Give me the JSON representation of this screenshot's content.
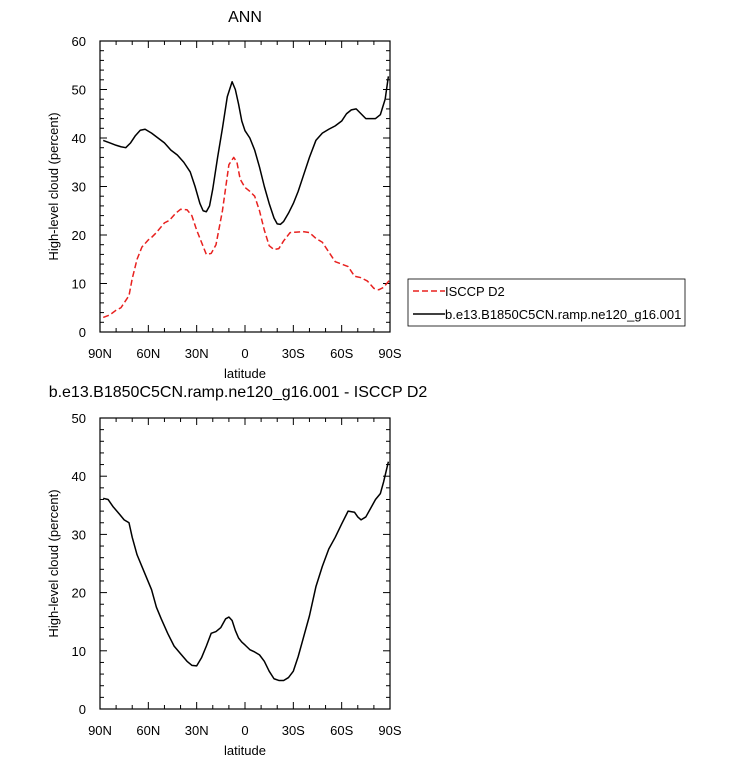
{
  "chart_data": [
    {
      "type": "line",
      "title": "ANN",
      "xlabel": "latitude",
      "ylabel": "High-level cloud (percent)",
      "xlim": [
        -90,
        90
      ],
      "ylim": [
        0,
        60
      ],
      "xticks": [
        -90,
        -60,
        -30,
        0,
        30,
        60,
        90
      ],
      "xtick_labels": [
        "90N",
        "60N",
        "30N",
        "0",
        "30S",
        "60S",
        "90S"
      ],
      "yticks": [
        0,
        10,
        20,
        30,
        40,
        50,
        60
      ],
      "ytick_labels": [
        "0",
        "10",
        "20",
        "30",
        "40",
        "50",
        "60"
      ],
      "legend": {
        "placement": "right-outside",
        "entries": [
          "ISCCP D2",
          "b.e13.B1850C5CN.ramp.ne120_g16.001"
        ]
      },
      "series": [
        {
          "name": "ISCCP D2",
          "color": "#e8211f",
          "dash": "dashed",
          "x": [
            -88,
            -84,
            -80,
            -77,
            -75,
            -72,
            -70,
            -67,
            -64,
            -60,
            -58,
            -55,
            -50,
            -47,
            -43,
            -40,
            -36,
            -33,
            -30,
            -27,
            -24,
            -21,
            -18,
            -14,
            -10,
            -7,
            -5,
            -3,
            0,
            3,
            6,
            9,
            12,
            15,
            18,
            21,
            24,
            28,
            32,
            36,
            40,
            44,
            48,
            52,
            56,
            60,
            64,
            68,
            72,
            76,
            80,
            83,
            86,
            90
          ],
          "y": [
            3,
            3.5,
            4.5,
            5,
            6,
            7.5,
            11,
            15,
            17.5,
            19,
            19.5,
            20.5,
            22.5,
            23,
            24.5,
            25.3,
            25.2,
            24,
            21,
            18.5,
            16,
            16.2,
            18,
            25,
            34.5,
            36,
            35,
            31.5,
            29.8,
            29,
            28,
            25,
            21,
            17.8,
            17,
            17.2,
            18.8,
            20.5,
            20.6,
            20.7,
            20.5,
            19.3,
            18.5,
            16.5,
            14.5,
            14,
            13.5,
            11.5,
            11.2,
            10.5,
            9,
            8.7,
            9.2,
            10.8
          ]
        },
        {
          "name": "b.e13.B1850C5CN.ramp.ne120_g16.001",
          "color": "#000000",
          "dash": "solid",
          "x": [
            -88,
            -84,
            -80,
            -77,
            -74,
            -71,
            -68,
            -65,
            -62,
            -58,
            -54,
            -50,
            -46,
            -42,
            -38,
            -34,
            -31,
            -28,
            -26,
            -24,
            -22,
            -20,
            -17,
            -14,
            -11,
            -8,
            -6,
            -4,
            -2,
            0,
            3,
            6,
            9,
            12,
            15,
            18,
            20,
            22,
            24,
            27,
            30,
            33,
            36,
            40,
            44,
            48,
            52,
            56,
            60,
            63,
            66,
            69,
            72,
            75,
            78,
            81,
            84,
            87,
            89
          ],
          "y": [
            39.5,
            39,
            38.5,
            38.2,
            38,
            39,
            40.5,
            41.6,
            41.8,
            41,
            40,
            39,
            37.5,
            36.5,
            35,
            33,
            30,
            26.5,
            25,
            24.8,
            26,
            29.5,
            36,
            42,
            48.5,
            51.6,
            50,
            47,
            43.5,
            41.5,
            40,
            37.5,
            34,
            30,
            26.5,
            23.5,
            22.3,
            22.2,
            22.8,
            24.5,
            26.5,
            29,
            32,
            36,
            39.5,
            41,
            41.8,
            42.5,
            43.5,
            45,
            45.8,
            46,
            45,
            44,
            44,
            44,
            44.8,
            48,
            52.7
          ]
        }
      ]
    },
    {
      "type": "line",
      "title": "b.e13.B1850C5CN.ramp.ne120_g16.001 - ISCCP D2",
      "xlabel": "latitude",
      "ylabel": "High-level cloud (percent)",
      "xlim": [
        -90,
        90
      ],
      "ylim": [
        0,
        50
      ],
      "xticks": [
        -90,
        -60,
        -30,
        0,
        30,
        60,
        90
      ],
      "xtick_labels": [
        "90N",
        "60N",
        "30N",
        "0",
        "30S",
        "60S",
        "90S"
      ],
      "yticks": [
        0,
        10,
        20,
        30,
        40,
        50
      ],
      "ytick_labels": [
        "0",
        "10",
        "20",
        "30",
        "40",
        "50"
      ],
      "series": [
        {
          "name": "b.e13.B1850C5CN.ramp.ne120_g16.001 - ISCCP D2",
          "color": "#000000",
          "dash": "solid",
          "x": [
            -88,
            -85,
            -82,
            -78,
            -75,
            -72,
            -70,
            -67,
            -64,
            -61,
            -58,
            -55,
            -52,
            -48,
            -44,
            -40,
            -36,
            -33,
            -30,
            -27,
            -24,
            -21,
            -18,
            -15,
            -12,
            -10,
            -8,
            -6,
            -4,
            -2,
            0,
            3,
            6,
            9,
            12,
            15,
            18,
            21,
            24,
            27,
            30,
            33,
            36,
            40,
            44,
            48,
            52,
            56,
            60,
            64,
            68,
            70,
            72,
            75,
            78,
            81,
            84,
            86,
            89
          ],
          "y": [
            36.2,
            36,
            34.8,
            33.5,
            32.5,
            32,
            29.5,
            26.5,
            24.5,
            22.5,
            20.5,
            17.5,
            15.5,
            13,
            10.8,
            9.5,
            8.2,
            7.5,
            7.4,
            8.8,
            10.8,
            13,
            13.3,
            14,
            15.5,
            15.8,
            15.2,
            13.5,
            12.2,
            11.5,
            11,
            10.2,
            9.8,
            9.3,
            8.2,
            6.5,
            5.2,
            4.9,
            4.9,
            5.4,
            6.5,
            9,
            12,
            16,
            21,
            24.5,
            27.5,
            29.5,
            31.8,
            34,
            33.8,
            33,
            32.5,
            33,
            34.5,
            36,
            37,
            39,
            42.5
          ]
        }
      ]
    }
  ]
}
